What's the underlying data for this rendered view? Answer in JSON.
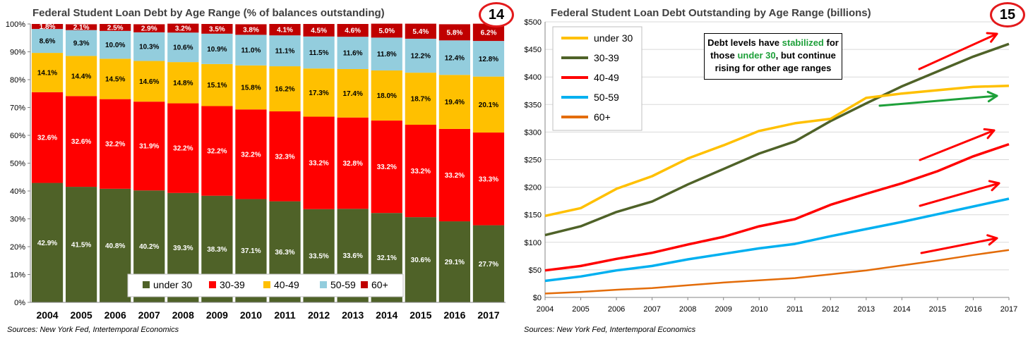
{
  "charts": {
    "left": {
      "title": "Federal Student Loan Debt by Age Range (% of balances outstanding)",
      "badge": "14",
      "source": "Sources: New York Fed, Intertemporal Economics"
    },
    "right": {
      "title": "Federal Student Loan Debt Outstanding by Age Range (billions)",
      "badge": "15",
      "source": "Sources: New York Fed, Intertemporal Economics",
      "annotation": {
        "part1": "Debt levels have ",
        "highlight1": "stabilized",
        "part2": " for those ",
        "highlight2": "under 30",
        "part3": ", but continue rising for other age ranges"
      }
    }
  },
  "colors": {
    "under 30 bar": "#4f6228",
    "30-39 bar": "#ff0000",
    "40-49 bar": "#ffc000",
    "50-59 bar": "#93cddd",
    "60+ bar": "#c00000",
    "under 30 line": "#ffc000",
    "30-39 line": "#4f6228",
    "40-49 line": "#ff0000",
    "50-59 line": "#00b0f0",
    "60+ line": "#e36c09",
    "arrow red": "#ff0000",
    "arrow green": "#1ea03a"
  },
  "chart_data": [
    {
      "type": "bar",
      "stacked": true,
      "title": "Federal Student Loan Debt by Age Range (% of balances outstanding)",
      "categories": [
        "2004",
        "2005",
        "2006",
        "2007",
        "2008",
        "2009",
        "2010",
        "2011",
        "2012",
        "2013",
        "2014",
        "2015",
        "2016",
        "2017"
      ],
      "ylim": [
        0,
        100
      ],
      "yticks": [
        "0%",
        "10%",
        "20%",
        "30%",
        "40%",
        "50%",
        "60%",
        "70%",
        "80%",
        "90%",
        "100%"
      ],
      "legend_position": "bottom-right",
      "series": [
        {
          "name": "under 30",
          "values": [
            42.9,
            41.5,
            40.8,
            40.2,
            39.3,
            38.3,
            37.1,
            36.3,
            33.5,
            33.6,
            32.1,
            30.6,
            29.1,
            27.7
          ],
          "labels": [
            "42.9%",
            "41.5%",
            "40.8%",
            "40.2%",
            "39.3%",
            "38.3%",
            "37.1%",
            "36.3%",
            "33.5%",
            "33.6%",
            "32.1%",
            "30.6%",
            "29.1%",
            "27.7%"
          ]
        },
        {
          "name": "30-39",
          "values": [
            32.6,
            32.6,
            32.2,
            31.9,
            32.2,
            32.2,
            32.2,
            32.3,
            33.2,
            32.8,
            33.2,
            33.2,
            33.2,
            33.3
          ],
          "labels": [
            "32.6%",
            "32.6%",
            "32.2%",
            "31.9%",
            "32.2%",
            "32.2%",
            "32.2%",
            "32.3%",
            "33.2%",
            "32.8%",
            "33.2%",
            "33.2%",
            "33.2%",
            "33.3%"
          ]
        },
        {
          "name": "40-49",
          "values": [
            14.1,
            14.4,
            14.5,
            14.6,
            14.8,
            15.1,
            15.8,
            16.2,
            17.3,
            17.4,
            18.0,
            18.7,
            19.4,
            20.1
          ],
          "labels": [
            "14.1%",
            "14.4%",
            "14.5%",
            "14.6%",
            "14.8%",
            "15.1%",
            "15.8%",
            "16.2%",
            "17.3%",
            "17.4%",
            "18.0%",
            "18.7%",
            "19.4%",
            "20.1%"
          ]
        },
        {
          "name": "50-59",
          "values": [
            8.6,
            9.3,
            10.0,
            10.3,
            10.6,
            10.9,
            11.0,
            11.1,
            11.5,
            11.6,
            11.8,
            12.2,
            12.4,
            12.8
          ],
          "labels": [
            "8.6%",
            "9.3%",
            "10.0%",
            "10.3%",
            "10.6%",
            "10.9%",
            "11.0%",
            "11.1%",
            "11.5%",
            "11.6%",
            "11.8%",
            "12.2%",
            "12.4%",
            "12.8%"
          ]
        },
        {
          "name": "60+",
          "values": [
            1.8,
            2.1,
            2.5,
            2.9,
            3.2,
            3.5,
            3.8,
            4.1,
            4.5,
            4.6,
            5.0,
            5.4,
            5.8,
            6.2
          ],
          "labels": [
            "1.8%",
            "2.1%",
            "2.5%",
            "2.9%",
            "3.2%",
            "3.5%",
            "3.8%",
            "4.1%",
            "4.5%",
            "4.6%",
            "5.0%",
            "5.4%",
            "5.8%",
            "6.2%"
          ]
        }
      ]
    },
    {
      "type": "line",
      "title": "Federal Student Loan Debt Outstanding by Age Range (billions)",
      "x": [
        "2004",
        "2005",
        "2006",
        "2007",
        "2008",
        "2009",
        "2010",
        "2011",
        "2012",
        "2013",
        "2014",
        "2015",
        "2016",
        "2017"
      ],
      "ylim": [
        0,
        500
      ],
      "yticks": [
        "$0",
        "$50",
        "$100",
        "$150",
        "$200",
        "$250",
        "$300",
        "$350",
        "$400",
        "$450",
        "$500"
      ],
      "legend_position": "top-left",
      "series": [
        {
          "name": "under 30",
          "values": [
            148,
            162,
            197,
            220,
            252,
            276,
            302,
            316,
            324,
            362,
            370,
            376,
            382,
            384
          ]
        },
        {
          "name": "30-39",
          "values": [
            113,
            129,
            155,
            174,
            205,
            233,
            261,
            283,
            320,
            352,
            383,
            410,
            437,
            460
          ]
        },
        {
          "name": "40-49",
          "values": [
            49,
            57,
            70,
            81,
            96,
            110,
            129,
            142,
            168,
            188,
            207,
            229,
            256,
            278
          ]
        },
        {
          "name": "50-59",
          "values": [
            30,
            38,
            49,
            57,
            69,
            79,
            89,
            97,
            111,
            124,
            137,
            151,
            165,
            179
          ]
        },
        {
          "name": "60+",
          "values": [
            7,
            10,
            14,
            17,
            22,
            27,
            31,
            35,
            42,
            49,
            58,
            67,
            77,
            86
          ]
        }
      ]
    }
  ]
}
